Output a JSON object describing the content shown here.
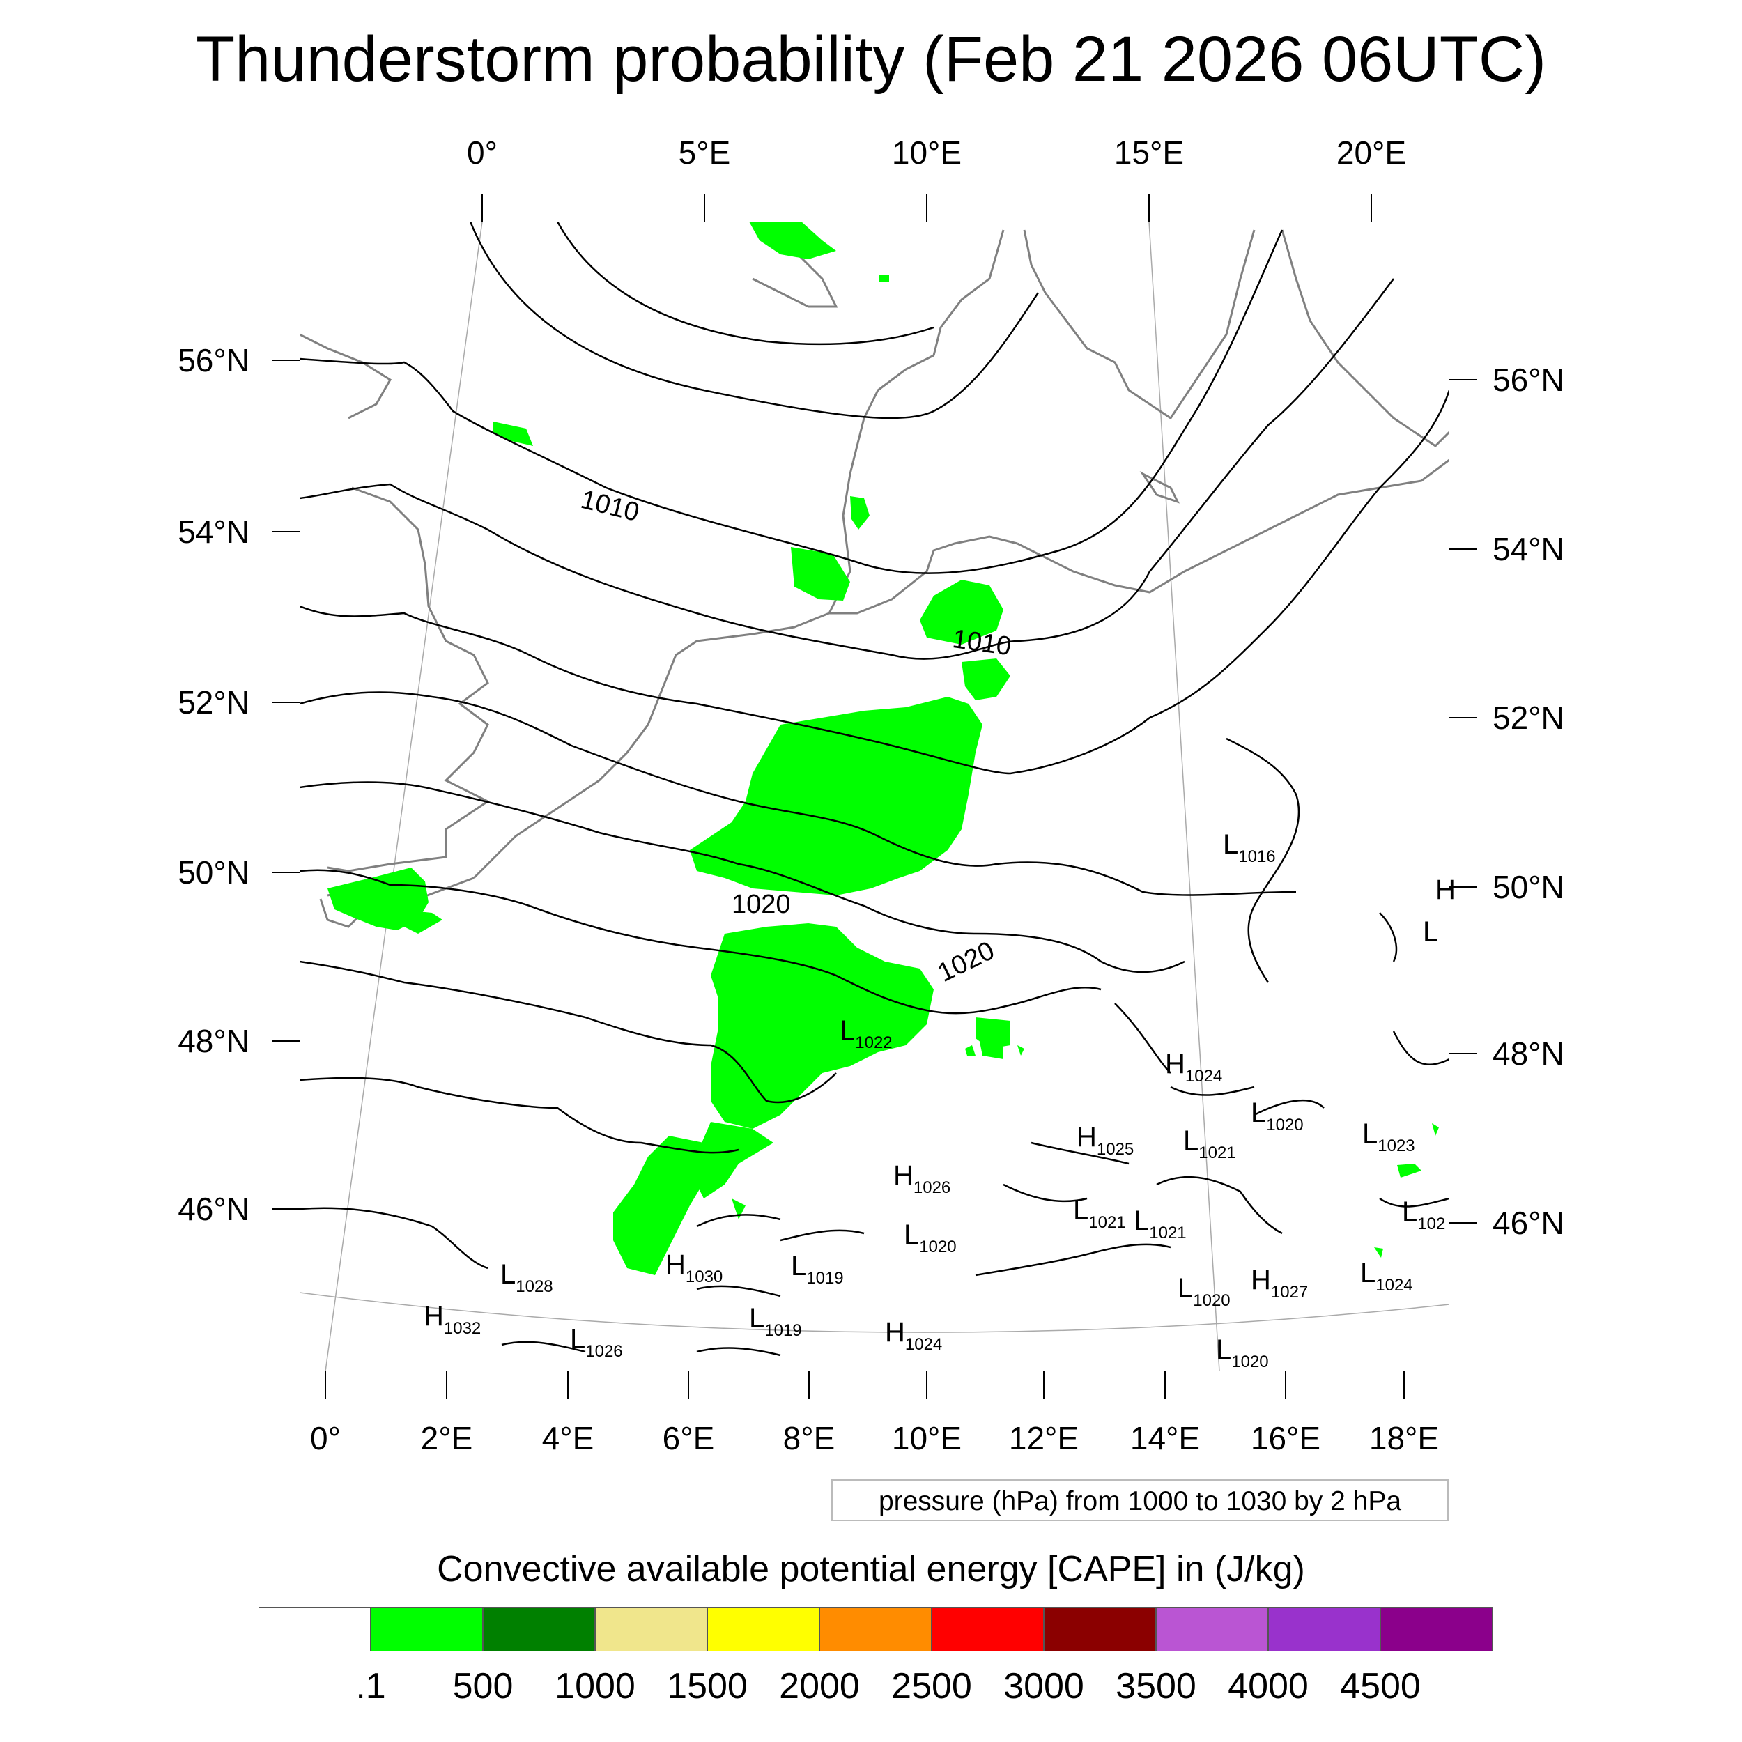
{
  "title": "Thunderstorm probability (Feb 21 2026 06UTC)",
  "map": {
    "top_lon_labels": [
      "0°",
      "5°E",
      "10°E",
      "15°E",
      "20°E"
    ],
    "bottom_lon_labels": [
      "0°",
      "2°E",
      "4°E",
      "6°E",
      "8°E",
      "10°E",
      "12°E",
      "14°E",
      "16°E",
      "18°E"
    ],
    "left_lat_labels": [
      "56°N",
      "54°N",
      "52°N",
      "50°N",
      "48°N",
      "46°N"
    ],
    "right_lat_labels": [
      "56°N",
      "54°N",
      "52°N",
      "50°N",
      "48°N",
      "46°N"
    ],
    "contour_labels": [
      "1010",
      "1010",
      "1020",
      "1020"
    ],
    "pressure_centers": [
      {
        "type": "L",
        "value": "1016"
      },
      {
        "type": "H",
        "value": ""
      },
      {
        "type": "L",
        "value": ""
      },
      {
        "type": "L",
        "value": "1022"
      },
      {
        "type": "H",
        "value": "1024"
      },
      {
        "type": "L",
        "value": "1020"
      },
      {
        "type": "H",
        "value": "1025"
      },
      {
        "type": "L",
        "value": "1021"
      },
      {
        "type": "L",
        "value": "1023"
      },
      {
        "type": "H",
        "value": "1026"
      },
      {
        "type": "L",
        "value": "102"
      },
      {
        "type": "L",
        "value": "1021"
      },
      {
        "type": "L",
        "value": "1021"
      },
      {
        "type": "L",
        "value": "1020"
      },
      {
        "type": "L",
        "value": "1028"
      },
      {
        "type": "H",
        "value": "1030"
      },
      {
        "type": "L",
        "value": "1019"
      },
      {
        "type": "L",
        "value": "1024"
      },
      {
        "type": "L",
        "value": "1020"
      },
      {
        "type": "H",
        "value": "1027"
      },
      {
        "type": "H",
        "value": "1032"
      },
      {
        "type": "L",
        "value": "1019"
      },
      {
        "type": "L",
        "value": "1026"
      },
      {
        "type": "H",
        "value": "1024"
      },
      {
        "type": "L",
        "value": "1020"
      }
    ],
    "colors": {
      "cape_fill": "#00ff00",
      "coast": "#808080",
      "contour": "#000000"
    }
  },
  "pressure_note": "pressure (hPa) from 1000 to 1030 by 2 hPa",
  "colorbar": {
    "title": "Convective available potential energy [CAPE] in (J/kg)",
    "colors": [
      "#ffffff",
      "#00ff00",
      "#008000",
      "#f0e68c",
      "#ffff00",
      "#ff8c00",
      "#ff0000",
      "#8b0000",
      "#ba55d3",
      "#9932cc",
      "#8b008b"
    ],
    "labels": [
      ".1",
      "500",
      "1000",
      "1500",
      "2000",
      "2500",
      "3000",
      "3500",
      "4000",
      "4500"
    ]
  }
}
